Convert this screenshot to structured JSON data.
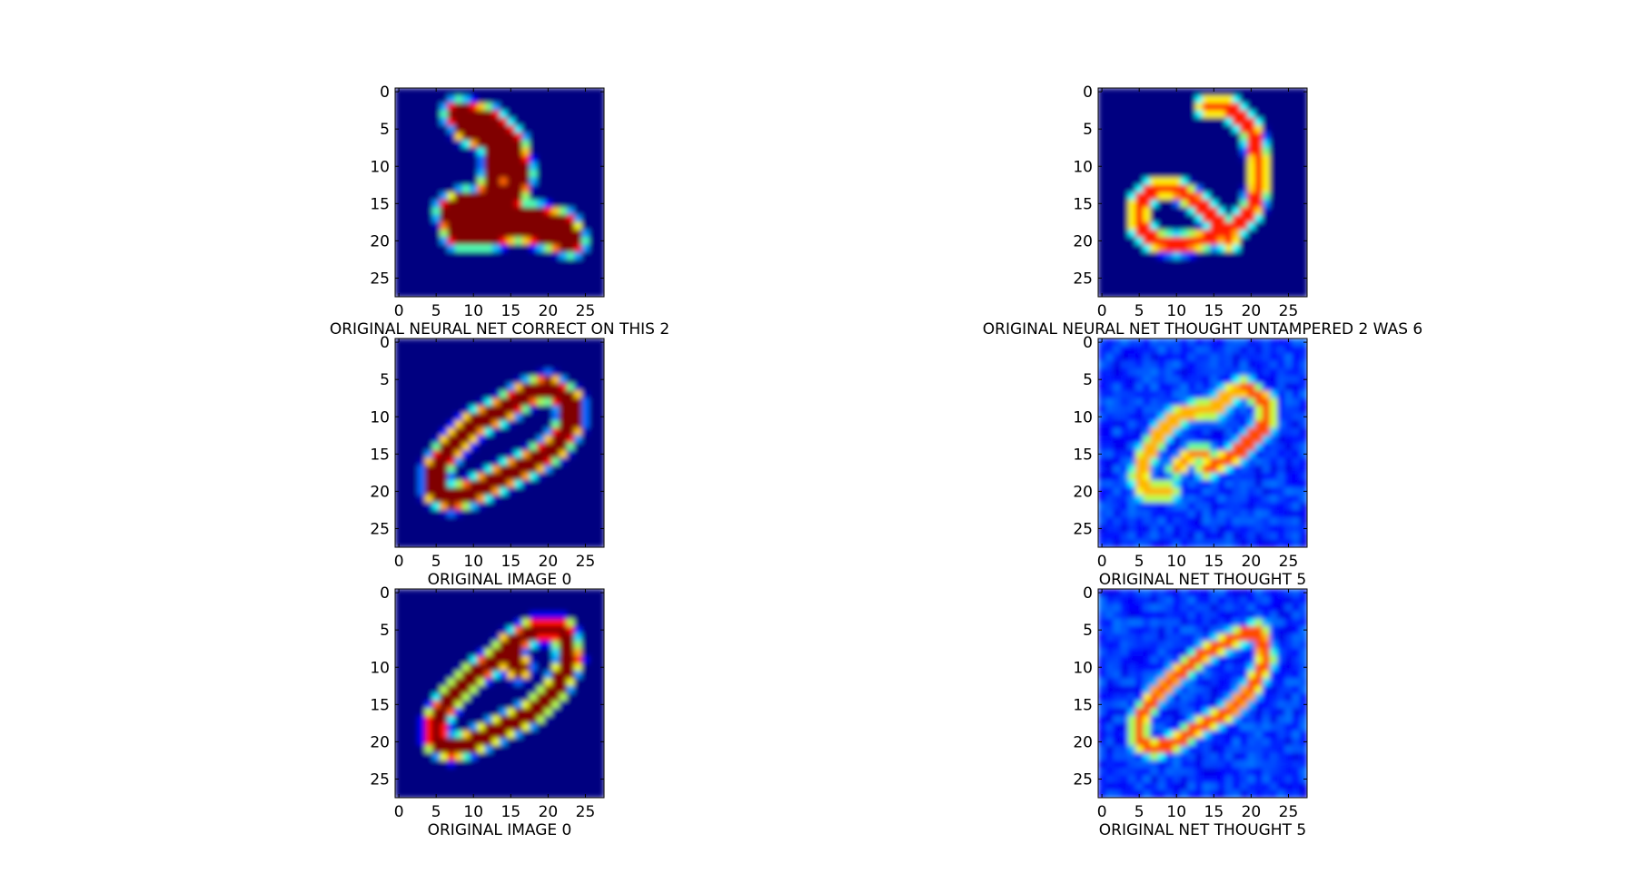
{
  "chart_data": [
    {
      "type": "heatmap",
      "colormap": "jet",
      "xlabel": "ORIGINAL NEURAL NET CORRECT ON THIS 2",
      "xticks": [
        0,
        5,
        10,
        15,
        20,
        25
      ],
      "yticks": [
        0,
        5,
        10,
        15,
        20,
        25
      ],
      "xlim": [
        0,
        27
      ],
      "ylim": [
        27,
        0
      ],
      "depicts": "handwritten digit 2",
      "background": "dark-blue",
      "strokes": [
        {
          "points": [
            [
              8,
              3
            ],
            [
              12,
              4
            ],
            [
              15,
              7
            ],
            [
              16,
              11
            ],
            [
              15,
              14
            ],
            [
              14,
              15
            ],
            [
              12,
              16
            ],
            [
              9,
              15
            ],
            [
              7,
              16
            ],
            [
              8,
              19
            ],
            [
              12,
              19
            ],
            [
              16,
              18
            ],
            [
              20,
              19
            ],
            [
              23,
              20
            ],
            [
              22,
              18
            ],
            [
              18,
              17
            ],
            [
              15,
              17
            ]
          ],
          "width": 2.8,
          "level": 1.0
        },
        {
          "points": [
            [
              12,
              4
            ],
            [
              9,
              5
            ],
            [
              13,
              7
            ],
            [
              13,
              11
            ],
            [
              12,
              14
            ],
            [
              10,
              16
            ]
          ],
          "width": 2.2,
          "level": 1.0
        },
        {
          "points": [
            [
              7,
              16
            ],
            [
              10,
              17
            ],
            [
              13,
              18
            ],
            [
              10,
              19
            ]
          ],
          "width": 2.2,
          "level": 1.0
        }
      ]
    },
    {
      "type": "heatmap",
      "colormap": "jet",
      "xlabel": "ORIGINAL NEURAL NET THOUGHT UNTAMPERED 2 WAS 6",
      "xticks": [
        0,
        5,
        10,
        15,
        20,
        25
      ],
      "yticks": [
        0,
        5,
        10,
        15,
        20,
        25
      ],
      "xlim": [
        0,
        27
      ],
      "ylim": [
        27,
        0
      ],
      "depicts": "loopy digit 2 misclassified as 6",
      "background": "dark-blue",
      "strokes": [
        {
          "points": [
            [
              14,
              2
            ],
            [
              17,
              2
            ],
            [
              20,
              5
            ],
            [
              21,
              9
            ],
            [
              21,
              13
            ],
            [
              20,
              16
            ],
            [
              18,
              18
            ],
            [
              16,
              19
            ],
            [
              13,
              20
            ],
            [
              10,
              20.5
            ],
            [
              7,
              20
            ],
            [
              5,
              18
            ],
            [
              5,
              15
            ],
            [
              7,
              13
            ],
            [
              10,
              13
            ],
            [
              13,
              15
            ],
            [
              16,
              18
            ],
            [
              17,
              20
            ]
          ],
          "width": 1.6,
          "level": 0.85
        }
      ]
    },
    {
      "type": "heatmap",
      "colormap": "jet",
      "xlabel": "ORIGINAL IMAGE 0",
      "xticks": [
        0,
        5,
        10,
        15,
        20,
        25
      ],
      "yticks": [
        0,
        5,
        10,
        15,
        20,
        25
      ],
      "xlim": [
        0,
        27
      ],
      "ylim": [
        27,
        0
      ],
      "depicts": "handwritten digit 0",
      "background": "dark-blue",
      "strokes": [
        {
          "points": [
            [
              20,
              6
            ],
            [
              23,
              8
            ],
            [
              23,
              11
            ],
            [
              21,
              14
            ],
            [
              18,
              16
            ],
            [
              14,
              18
            ],
            [
              10,
              20
            ],
            [
              7,
              21
            ],
            [
              5,
              20
            ],
            [
              5,
              17
            ],
            [
              7,
              14
            ],
            [
              10,
              11
            ],
            [
              14,
              9
            ],
            [
              17,
              7
            ],
            [
              20,
              6
            ]
          ],
          "width": 2.2,
          "level": 1.0
        }
      ]
    },
    {
      "type": "heatmap",
      "colormap": "jet",
      "xlabel": "ORIGINAL NET THOUGHT 5",
      "xticks": [
        0,
        5,
        10,
        15,
        20,
        25
      ],
      "yticks": [
        0,
        5,
        10,
        15,
        20,
        25
      ],
      "xlim": [
        0,
        27
      ],
      "ylim": [
        27,
        0
      ],
      "depicts": "perturbed digit 0 classified as 5",
      "background": "noisy-blue",
      "strokes": [
        {
          "points": [
            [
              19,
              6
            ],
            [
              22,
              8
            ],
            [
              22,
              11
            ],
            [
              20,
              13
            ],
            [
              18,
              15
            ],
            [
              16,
              16
            ],
            [
              14,
              17
            ]
          ],
          "width": 1.5,
          "level": 0.8
        },
        {
          "points": [
            [
              19,
              6
            ],
            [
              17,
              7
            ],
            [
              15,
              9
            ],
            [
              13,
              9
            ],
            [
              10,
              10
            ],
            [
              8,
              12
            ],
            [
              6,
              15
            ],
            [
              5,
              18
            ],
            [
              6,
              20
            ],
            [
              9,
              20
            ]
          ],
          "width": 1.7,
          "level": 0.7
        },
        {
          "points": [
            [
              10,
              17
            ],
            [
              12,
              15
            ],
            [
              14,
              15
            ]
          ],
          "width": 1.3,
          "level": 0.75
        }
      ]
    },
    {
      "type": "heatmap",
      "colormap": "jet",
      "xlabel": "ORIGINAL IMAGE 0",
      "xticks": [
        0,
        5,
        10,
        15,
        20,
        25
      ],
      "yticks": [
        0,
        5,
        10,
        15,
        20,
        25
      ],
      "xlim": [
        0,
        27
      ],
      "ylim": [
        27,
        0
      ],
      "depicts": "handwritten digit 0",
      "background": "dark-blue",
      "strokes": [
        {
          "points": [
            [
              22,
              5
            ],
            [
              23,
              9
            ],
            [
              21,
              13
            ],
            [
              18,
              16
            ],
            [
              14,
              18
            ],
            [
              10,
              20
            ],
            [
              7,
              21
            ],
            [
              5,
              20
            ],
            [
              5,
              17
            ],
            [
              7,
              14
            ],
            [
              10,
              11
            ],
            [
              13,
              9
            ],
            [
              15,
              7
            ],
            [
              18,
              5
            ],
            [
              22,
              5
            ]
          ],
          "width": 1.9,
          "level": 1.0
        },
        {
          "points": [
            [
              15,
              7
            ],
            [
              15,
              9
            ],
            [
              16,
              10
            ]
          ],
          "width": 2.2,
          "level": 1.0
        }
      ]
    },
    {
      "type": "heatmap",
      "colormap": "jet",
      "xlabel": "ORIGINAL NET THOUGHT 5",
      "xticks": [
        0,
        5,
        10,
        15,
        20,
        25
      ],
      "yticks": [
        0,
        5,
        10,
        15,
        20,
        25
      ],
      "xlim": [
        0,
        27
      ],
      "ylim": [
        27,
        0
      ],
      "depicts": "perturbed digit 0 classified as 5",
      "background": "noisy-blue",
      "strokes": [
        {
          "points": [
            [
              21,
              5
            ],
            [
              22,
              9
            ],
            [
              20,
              13
            ],
            [
              17,
              16
            ],
            [
              13,
              18
            ],
            [
              10,
              20
            ],
            [
              7,
              21
            ],
            [
              5,
              20
            ],
            [
              5,
              17
            ],
            [
              7,
              14
            ],
            [
              10,
              11
            ],
            [
              14,
              8
            ],
            [
              18,
              6
            ],
            [
              21,
              5
            ]
          ],
          "width": 1.4,
          "level": 0.8
        }
      ]
    }
  ]
}
